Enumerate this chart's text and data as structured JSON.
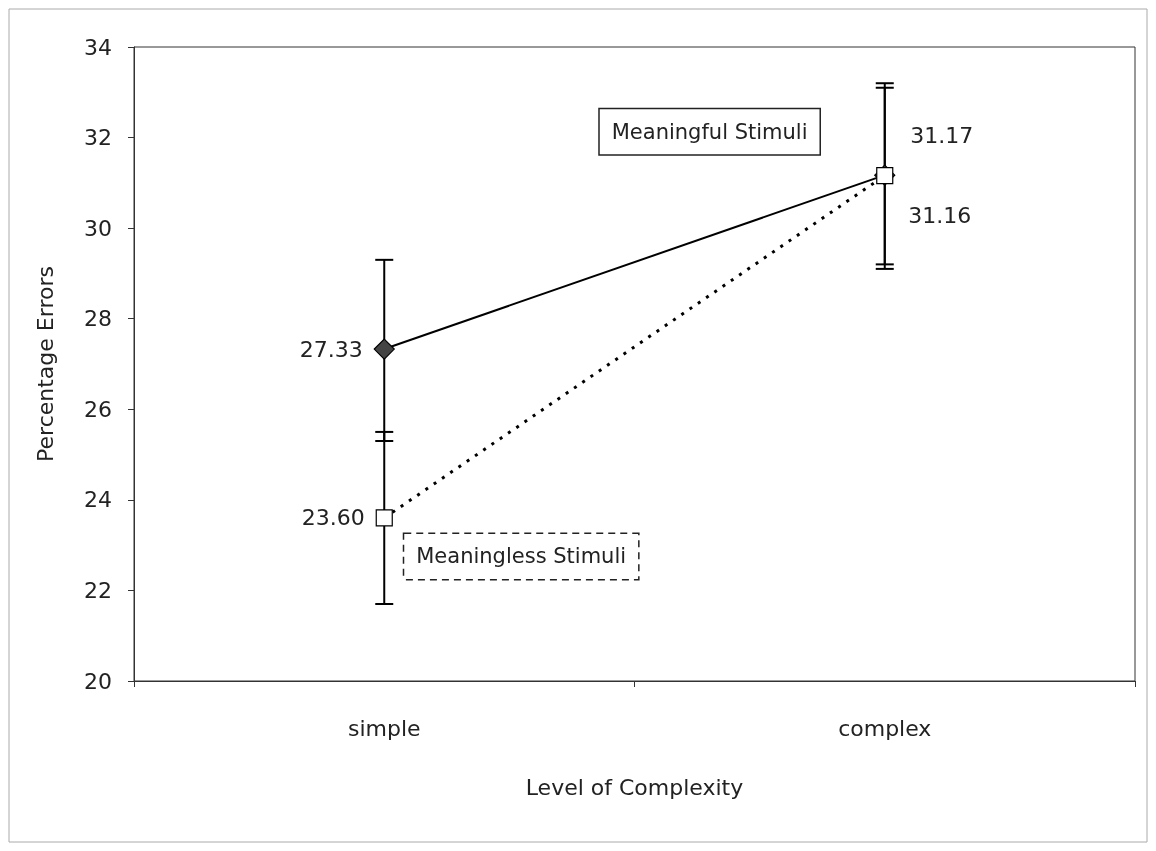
{
  "chart_data": {
    "type": "line",
    "xlabel": "Level of Complexity",
    "ylabel": "Percentage Errors",
    "categories": [
      "simple",
      "complex"
    ],
    "series": [
      {
        "name": "Meaningful Stimuli",
        "color": "#000000",
        "marker": "diamond",
        "line_style": "solid",
        "values": [
          27.33,
          31.17
        ],
        "value_labels": [
          "27.33",
          "31.17"
        ],
        "errors": [
          [
            25.3,
            29.3
          ],
          [
            29.1,
            33.2
          ]
        ]
      },
      {
        "name": "Meaningless Stimuli",
        "color": "#000000",
        "marker": "square",
        "line_style": "dotted",
        "values": [
          23.6,
          31.16
        ],
        "value_labels": [
          "23.60",
          "31.16"
        ],
        "errors": [
          [
            21.7,
            25.5
          ],
          [
            29.2,
            33.1
          ]
        ]
      }
    ],
    "ylim": [
      20,
      34
    ],
    "yticks": [
      20,
      22,
      24,
      26,
      28,
      30,
      32,
      34
    ],
    "grid": false,
    "legend": false
  }
}
